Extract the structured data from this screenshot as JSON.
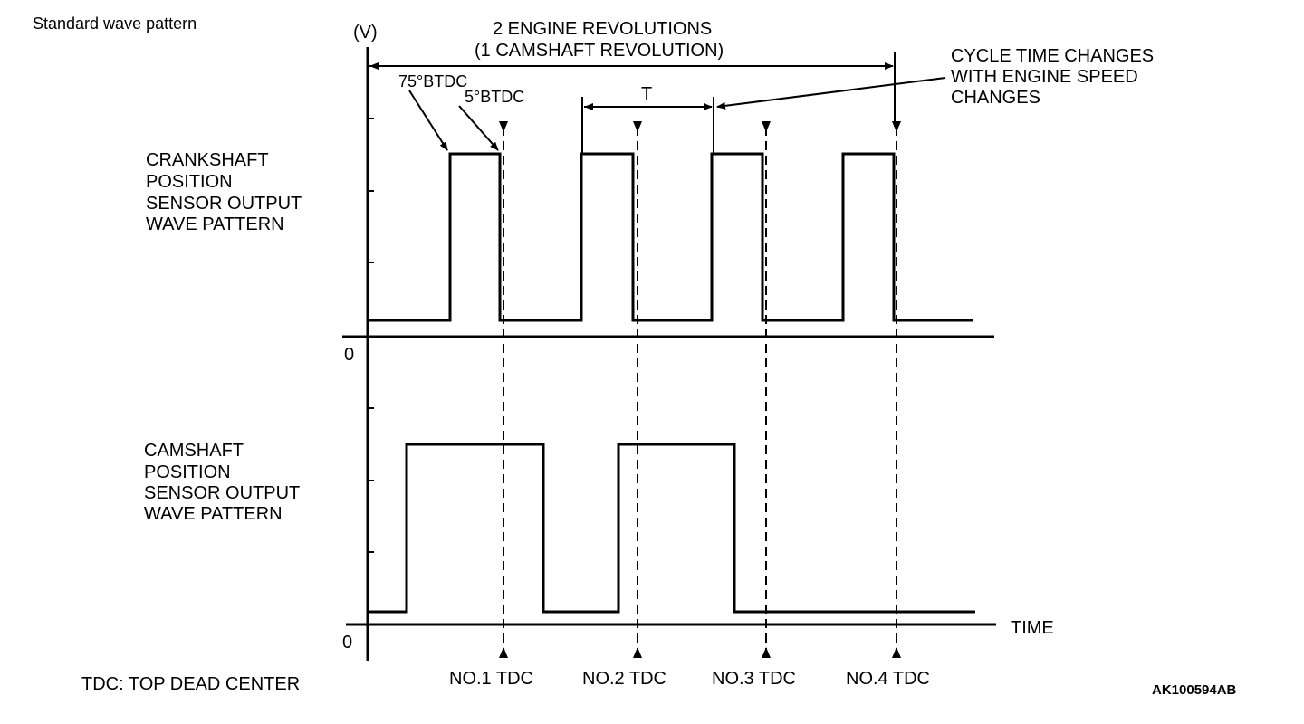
{
  "title": "Standard wave pattern",
  "axis": {
    "unit": "(V)",
    "zero_top": "0",
    "zero_bottom": "0",
    "time_label": "TIME"
  },
  "annotations": {
    "revolutions_line1": "2 ENGINE REVOLUTIONS",
    "revolutions_line2": "(1 CAMSHAFT REVOLUTION)",
    "btdc75": "75°BTDC",
    "btdc5": "5°BTDC",
    "period": "T",
    "cycle_line1": "CYCLE TIME CHANGES",
    "cycle_line2": "WITH ENGINE SPEED",
    "cycle_line3": "CHANGES"
  },
  "crank_label": [
    "CRANKSHAFT",
    "POSITION",
    "SENSOR OUTPUT",
    "WAVE PATTERN"
  ],
  "cam_label": [
    "CAMSHAFT",
    "POSITION",
    "SENSOR OUTPUT",
    "WAVE PATTERN"
  ],
  "tdc_labels": [
    "NO.1 TDC",
    "NO.2 TDC",
    "NO.3 TDC",
    "NO.4 TDC"
  ],
  "legend": "TDC: TOP DEAD CENTER",
  "figure_code": "AK100594AB"
}
